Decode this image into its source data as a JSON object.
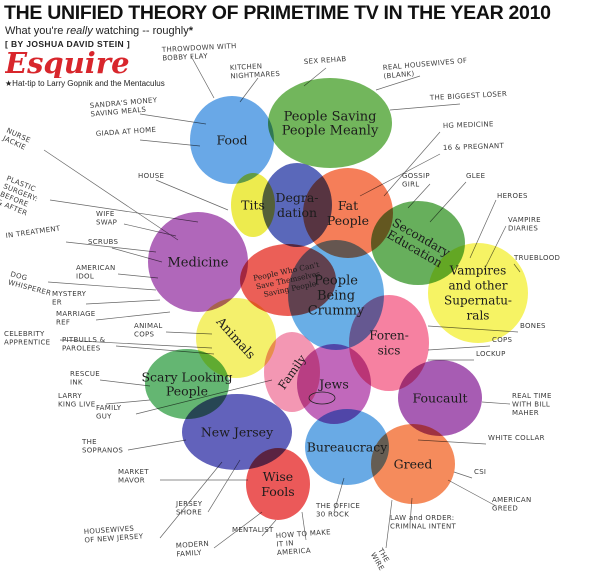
{
  "header": {
    "title": "THE UNIFIED THEORY OF PRIMETIME TV IN THE YEAR 2010",
    "subtitle_pre": "What you're ",
    "subtitle_em": "really",
    "subtitle_post": " watching -- roughly",
    "subtitle_mark": "*",
    "byline": "[ BY JOSHUA DAVID STEIN ]",
    "logo": "Esquire",
    "hattip": "Hat-tip to Larry Gopnik and the Mentaculus"
  },
  "circles": [
    {
      "label": [
        "Food"
      ],
      "color": "#3f8fe0"
    },
    {
      "label": [
        "People Saving",
        "People Meanly"
      ],
      "color": "#4aa22e"
    },
    {
      "label": [
        "Tits"
      ],
      "color": "#e8e61c"
    },
    {
      "label": [
        "Degra-",
        "dation"
      ],
      "color": "#2c3ea6"
    },
    {
      "label": [
        "Fat",
        "People"
      ],
      "color": "#f25a2a"
    },
    {
      "label": [
        "Secondary",
        "Education"
      ],
      "color": "#3c982e"
    },
    {
      "label": [
        "Vampires",
        "and other",
        "Supernatu-",
        "rals"
      ],
      "color": "#f3ef38"
    },
    {
      "label": [
        "Medicine"
      ],
      "color": "#9a3ca6"
    },
    {
      "label": [
        "People Who Can't",
        "Save Themselves",
        "Saving People"
      ],
      "color": "#e63228"
    },
    {
      "label": [
        "People",
        "Being",
        "Crummy"
      ],
      "color": "#3f97df"
    },
    {
      "label": [
        "Animals"
      ],
      "color": "#f1ec42"
    },
    {
      "label": [
        "Foren-",
        "sics"
      ],
      "color": "#f35d86"
    },
    {
      "label": [
        "Scary Looking",
        "People"
      ],
      "color": "#39a24a"
    },
    {
      "label": [
        "Family"
      ],
      "color": "#f07a9e"
    },
    {
      "label": [
        "Jews"
      ],
      "color": "#b03ea8"
    },
    {
      "label": [
        "Foucault"
      ],
      "color": "#8e2e9e"
    },
    {
      "label": [
        "New Jersey"
      ],
      "color": "#3636a8"
    },
    {
      "label": [
        "Bureaucracy"
      ],
      "color": "#3f92de"
    },
    {
      "label": [
        "Greed"
      ],
      "color": "#f26a2e"
    },
    {
      "label": [
        "Wise",
        "Fools"
      ],
      "color": "#e52a2a"
    }
  ],
  "shows": [
    [
      "THROWDOWN WITH",
      "BOBBY FLAY"
    ],
    [
      "KITCHEN",
      "NIGHTMARES"
    ],
    [
      "SEX REHAB"
    ],
    [
      "REAL HOUSEWIVES OF",
      "(BLANK)"
    ],
    [
      "THE BIGGEST LOSER"
    ],
    [
      "NURSE",
      "JACKIE"
    ],
    [
      "SANDRA'S MONEY",
      "SAVING MEALS"
    ],
    [
      "GIADA AT HOME"
    ],
    [
      "HOUSE"
    ],
    [
      "HG MEDICINE"
    ],
    [
      "16 & PREGNANT"
    ],
    [
      "GOSSIP",
      "GIRL"
    ],
    [
      "GLEE"
    ],
    [
      "HEROES"
    ],
    [
      "VAMPIRE",
      "DIARIES"
    ],
    [
      "PLASTIC",
      "SURGERY:",
      "BEFORE",
      "& AFTER"
    ],
    [
      "WIFE",
      "SWAP"
    ],
    [
      "IN TREATMENT"
    ],
    [
      "SCRUBS"
    ],
    [
      "TRUEBLOOD"
    ],
    [
      "AMERICAN",
      "IDOL"
    ],
    [
      "DOG",
      "WHISPERER"
    ],
    [
      "MYSTERY",
      "ER"
    ],
    [
      "MARRIAGE",
      "REF"
    ],
    [
      "ANIMAL",
      "COPS"
    ],
    [
      "BONES"
    ],
    [
      "CELEBRITY",
      "APPRENTICE"
    ],
    [
      "PITBULLS &",
      "PAROLEES"
    ],
    [
      "COPS"
    ],
    [
      "LOCKUP"
    ],
    [
      "RESCUE",
      "INK"
    ],
    [
      "LARRY",
      "KING LIVE"
    ],
    [
      "FAMILY",
      "GUY"
    ],
    [
      "REAL TIME",
      "WITH BILL",
      "MAHER"
    ],
    [
      "THE",
      "SOPRANOS"
    ],
    [
      "WHITE COLLAR"
    ],
    [
      "CSI"
    ],
    [
      "MARKET",
      "MAVOR"
    ],
    [
      "JERSEY",
      "SHORE"
    ],
    [
      "HOUSEWIVES",
      "OF NEW JERSEY"
    ],
    [
      "MODERN",
      "FAMILY"
    ],
    [
      "MENTALIST"
    ],
    [
      "HOW TO MAKE",
      "IT IN",
      "AMERICA"
    ],
    [
      "THE OFFICE",
      "30 ROCK"
    ],
    [
      "LAW and ORDER:",
      "CRIMINAL INTENT"
    ],
    [
      "THE",
      "WIRE"
    ],
    [
      "AMERICAN",
      "GREED"
    ]
  ]
}
